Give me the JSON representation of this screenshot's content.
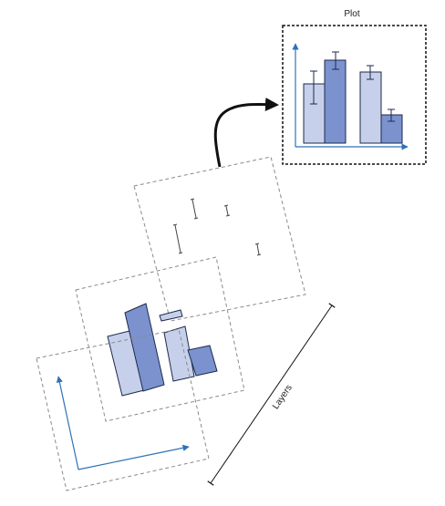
{
  "plot": {
    "title": "Plot"
  },
  "layers_axis": {
    "label": "Layers"
  },
  "colors": {
    "light_bar": "#c6d0ea",
    "dark_bar": "#7b92cf",
    "bar_stroke": "#1e2a4a",
    "axis_blue": "#2f72b6",
    "dashed_frame": "#8a8a8a",
    "plot_frame": "#111111",
    "arrow": "#111111"
  }
}
